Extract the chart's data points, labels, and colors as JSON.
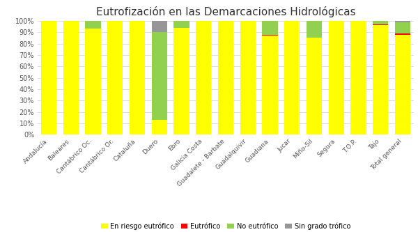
{
  "title": "Eutrofización en las Demarcaciones Hidrológicas",
  "categories": [
    "Andalucía",
    "Baleares",
    "Cantábrico Oc.",
    "Cantábrico Or.",
    "Cataluña",
    "Duero",
    "Ebro",
    "Galicia Costa",
    "Guadalete - Barbate",
    "Guadalquivir",
    "Guadiana",
    "Jucar",
    "Miño-Sil",
    "Segura",
    "T.O.P.",
    "Tajo",
    "Total general"
  ],
  "en_riesgo": [
    100,
    100,
    93,
    100,
    100,
    13,
    94,
    100,
    100,
    100,
    87,
    100,
    85,
    100,
    100,
    96,
    88
  ],
  "eutrofico": [
    0,
    0,
    0,
    0,
    0,
    0,
    0,
    0,
    0,
    0,
    1,
    0,
    0,
    0,
    0,
    1,
    1
  ],
  "no_eutrofico": [
    0,
    0,
    7,
    0,
    0,
    77,
    6,
    0,
    0,
    0,
    12,
    0,
    15,
    0,
    0,
    3,
    10
  ],
  "sin_grado": [
    0,
    0,
    0,
    0,
    0,
    10,
    0,
    0,
    0,
    0,
    0,
    0,
    0,
    0,
    0,
    0,
    1
  ],
  "colors": {
    "en_riesgo": "#FFFF00",
    "eutrofico": "#FF0000",
    "no_eutrofico": "#92D050",
    "sin_grado": "#969696"
  },
  "legend_labels": [
    "En riesgo eutrófico",
    "Eutrófico",
    "No eutrófico",
    "Sin grado trófico"
  ],
  "background_color": "#ffffff",
  "title_fontsize": 11,
  "tick_fontsize": 7,
  "xtick_fontsize": 6.5
}
